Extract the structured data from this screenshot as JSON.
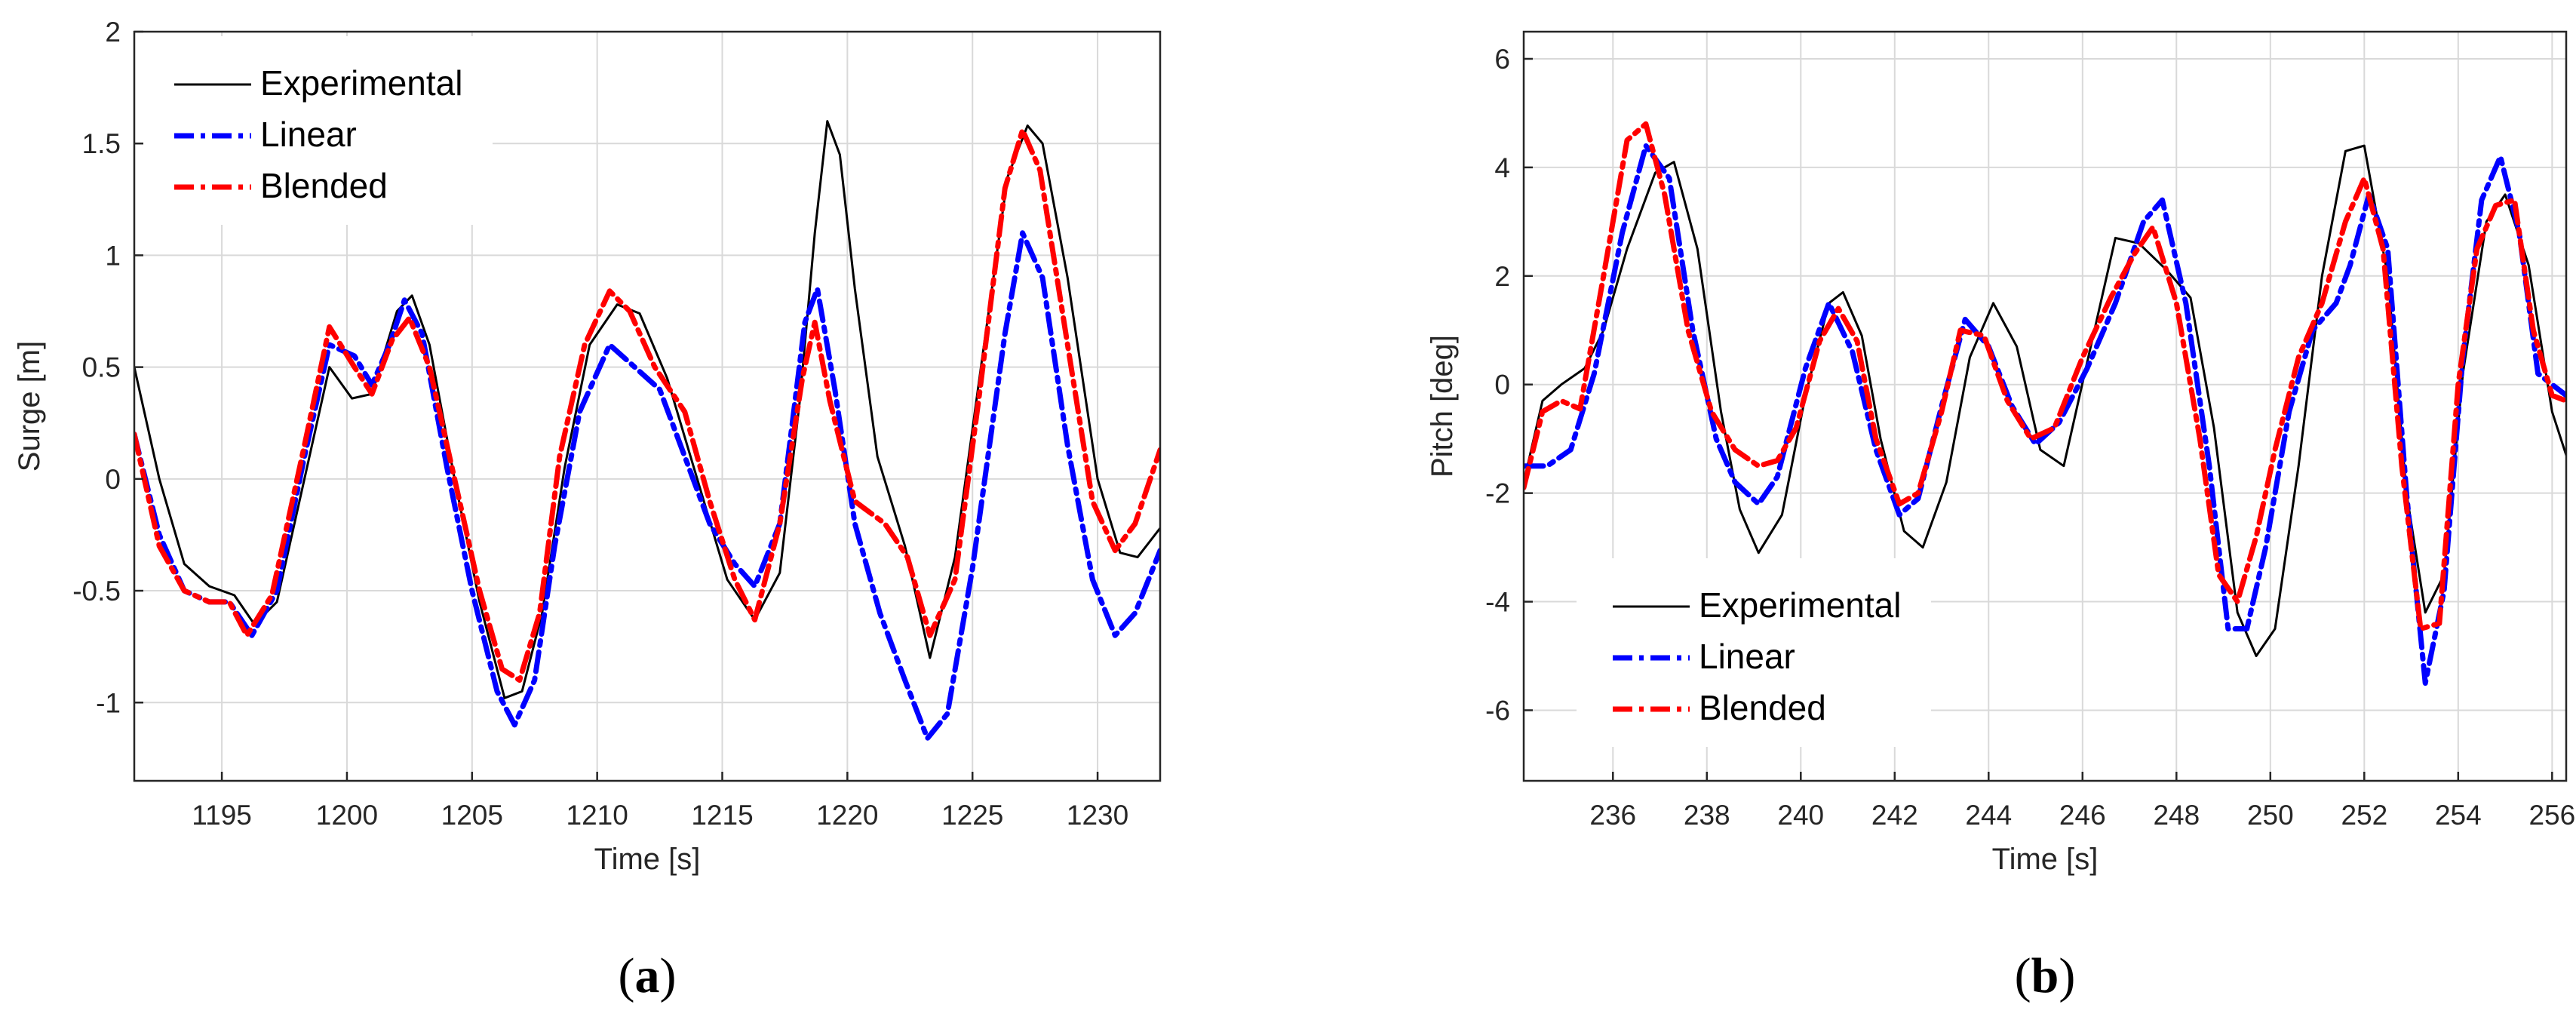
{
  "colors": {
    "experimental": "#000000",
    "linear": "#0000ff",
    "blended": "#ff0000",
    "grid": "#d9d9d9",
    "axis": "#262626"
  },
  "chart_data": [
    {
      "type": "line",
      "panel_label": {
        "open": "(",
        "letter": "a",
        "close": ")"
      },
      "title": "",
      "xlabel": "Time [s]",
      "ylabel": "Surge [m]",
      "xlim": [
        1191.5,
        1232.5
      ],
      "ylim": [
        -1.35,
        2.0
      ],
      "xticks": [
        1195,
        1200,
        1205,
        1210,
        1215,
        1220,
        1225,
        1230
      ],
      "yticks": [
        -1,
        -0.5,
        0,
        0.5,
        1,
        1.5,
        2
      ],
      "xtick_labels": [
        "1195",
        "1200",
        "1205",
        "1210",
        "1215",
        "1220",
        "1225",
        "1230"
      ],
      "ytick_labels": [
        "-1",
        "-0.5",
        "0",
        "0.5",
        "1",
        "1.5",
        "2"
      ],
      "grid": true,
      "legend_position": "top-left",
      "series": [
        {
          "name": "Experimental",
          "style": "solid",
          "x": [
            1191.5,
            1192.5,
            1193.5,
            1194.5,
            1195.5,
            1196.3,
            1197.2,
            1198.3,
            1199.3,
            1200.2,
            1201.0,
            1202.0,
            1202.6,
            1203.3,
            1204.3,
            1205.3,
            1206.3,
            1207.0,
            1207.8,
            1208.7,
            1209.7,
            1210.8,
            1211.7,
            1212.8,
            1214.0,
            1215.2,
            1216.3,
            1217.3,
            1218.1,
            1218.7,
            1219.2,
            1219.7,
            1220.3,
            1221.2,
            1222.3,
            1223.3,
            1224.3,
            1225.4,
            1226.4,
            1227.2,
            1227.8,
            1228.8,
            1230.0,
            1230.9,
            1231.6,
            1232.5
          ],
          "y": [
            0.5,
            0.0,
            -0.38,
            -0.48,
            -0.52,
            -0.65,
            -0.55,
            0.0,
            0.5,
            0.36,
            0.38,
            0.75,
            0.82,
            0.6,
            0.0,
            -0.55,
            -0.98,
            -0.95,
            -0.6,
            0.05,
            0.6,
            0.78,
            0.74,
            0.45,
            0.0,
            -0.45,
            -0.63,
            -0.42,
            0.35,
            1.1,
            1.6,
            1.45,
            0.85,
            0.1,
            -0.3,
            -0.8,
            -0.35,
            0.55,
            1.35,
            1.58,
            1.5,
            0.9,
            0.0,
            -0.33,
            -0.35,
            -0.22
          ]
        },
        {
          "name": "Linear",
          "style": "dashdot",
          "x": [
            1191.5,
            1192.5,
            1193.5,
            1194.5,
            1195.3,
            1196.2,
            1197.2,
            1198.3,
            1199.3,
            1200.3,
            1201.0,
            1201.7,
            1202.3,
            1203.0,
            1204.0,
            1205.0,
            1206.0,
            1206.7,
            1207.5,
            1208.3,
            1209.3,
            1210.5,
            1211.5,
            1212.5,
            1213.5,
            1214.5,
            1215.5,
            1216.3,
            1217.3,
            1218.3,
            1218.8,
            1219.5,
            1220.3,
            1221.3,
            1222.3,
            1223.2,
            1224.0,
            1225.0,
            1226.3,
            1227.0,
            1227.8,
            1228.8,
            1229.8,
            1230.7,
            1231.5,
            1232.5
          ],
          "y": [
            0.2,
            -0.25,
            -0.5,
            -0.55,
            -0.55,
            -0.7,
            -0.5,
            0.1,
            0.6,
            0.55,
            0.42,
            0.6,
            0.8,
            0.65,
            0.05,
            -0.5,
            -0.95,
            -1.1,
            -0.9,
            -0.3,
            0.3,
            0.6,
            0.5,
            0.4,
            0.1,
            -0.2,
            -0.38,
            -0.48,
            -0.2,
            0.7,
            0.85,
            0.4,
            -0.2,
            -0.6,
            -0.9,
            -1.16,
            -1.05,
            -0.4,
            0.65,
            1.1,
            0.9,
            0.15,
            -0.45,
            -0.7,
            -0.6,
            -0.32
          ]
        },
        {
          "name": "Blended",
          "style": "dashdot",
          "x": [
            1191.5,
            1192.5,
            1193.5,
            1194.5,
            1195.3,
            1196.0,
            1197.0,
            1198.3,
            1199.3,
            1200.3,
            1201.0,
            1201.8,
            1202.5,
            1203.3,
            1204.3,
            1205.3,
            1206.2,
            1206.9,
            1207.7,
            1208.5,
            1209.5,
            1210.5,
            1211.3,
            1212.3,
            1213.5,
            1214.5,
            1215.5,
            1216.3,
            1217.3,
            1218.2,
            1218.7,
            1219.3,
            1220.3,
            1221.5,
            1222.4,
            1223.3,
            1224.3,
            1225.3,
            1226.3,
            1227.0,
            1227.7,
            1228.8,
            1229.8,
            1230.7,
            1231.5,
            1232.5
          ],
          "y": [
            0.2,
            -0.3,
            -0.5,
            -0.55,
            -0.55,
            -0.7,
            -0.52,
            0.15,
            0.68,
            0.5,
            0.38,
            0.62,
            0.72,
            0.5,
            0.0,
            -0.5,
            -0.85,
            -0.9,
            -0.6,
            0.1,
            0.6,
            0.84,
            0.75,
            0.5,
            0.3,
            -0.1,
            -0.45,
            -0.63,
            -0.2,
            0.45,
            0.7,
            0.35,
            -0.1,
            -0.2,
            -0.35,
            -0.7,
            -0.45,
            0.4,
            1.3,
            1.56,
            1.38,
            0.6,
            -0.1,
            -0.32,
            -0.2,
            0.13
          ]
        }
      ]
    },
    {
      "type": "line",
      "panel_label": {
        "open": "(",
        "letter": "b",
        "close": ")"
      },
      "title": "",
      "xlabel": "Time [s]",
      "ylabel": "Pitch [deg]",
      "xlim": [
        234.1,
        256.3
      ],
      "ylim": [
        -7.3,
        6.5
      ],
      "xticks": [
        236,
        238,
        240,
        242,
        244,
        246,
        248,
        250,
        252,
        254,
        256
      ],
      "yticks": [
        -6,
        -4,
        -2,
        0,
        2,
        4,
        6
      ],
      "xtick_labels": [
        "236",
        "238",
        "240",
        "242",
        "244",
        "246",
        "248",
        "250",
        "252",
        "254",
        "256"
      ],
      "ytick_labels": [
        "-6",
        "-4",
        "-2",
        "0",
        "2",
        "4",
        "6"
      ],
      "grid": true,
      "legend_position": "bottom-left",
      "series": [
        {
          "name": "Experimental",
          "style": "solid",
          "x": [
            234.1,
            234.5,
            234.9,
            235.4,
            235.8,
            236.3,
            236.9,
            237.3,
            237.8,
            238.3,
            238.7,
            239.1,
            239.6,
            240.1,
            240.6,
            240.9,
            241.3,
            241.7,
            242.2,
            242.6,
            243.1,
            243.6,
            244.1,
            244.6,
            245.1,
            245.6,
            246.2,
            246.7,
            247.2,
            247.8,
            248.3,
            248.8,
            249.3,
            249.7,
            250.1,
            250.6,
            251.1,
            251.6,
            252.0,
            252.5,
            252.9,
            253.3,
            253.7,
            254.1,
            254.6,
            255.0,
            255.5,
            256.0,
            256.3
          ],
          "y": [
            -1.8,
            -0.3,
            0.0,
            0.3,
            1.0,
            2.5,
            3.9,
            4.1,
            2.5,
            -0.5,
            -2.3,
            -3.1,
            -2.4,
            -0.2,
            1.5,
            1.7,
            0.9,
            -1.0,
            -2.7,
            -3.0,
            -1.8,
            0.5,
            1.5,
            0.7,
            -1.2,
            -1.5,
            0.8,
            2.7,
            2.6,
            2.1,
            1.6,
            -0.8,
            -4.2,
            -5.0,
            -4.5,
            -1.5,
            2.0,
            4.3,
            4.4,
            2.0,
            -2.0,
            -4.2,
            -3.5,
            0.2,
            3.0,
            3.5,
            2.2,
            -0.5,
            -1.3
          ]
        },
        {
          "name": "Linear",
          "style": "dashdot",
          "x": [
            234.1,
            234.6,
            235.1,
            235.6,
            236.2,
            236.7,
            237.2,
            237.7,
            238.2,
            238.6,
            239.1,
            239.5,
            240.1,
            240.6,
            241.1,
            241.6,
            242.1,
            242.5,
            243.0,
            243.5,
            244.0,
            244.5,
            245.0,
            245.5,
            246.1,
            246.7,
            247.3,
            247.7,
            248.2,
            248.7,
            249.1,
            249.5,
            249.9,
            250.4,
            250.9,
            251.4,
            251.7,
            252.1,
            252.5,
            252.9,
            253.3,
            253.7,
            254.1,
            254.5,
            254.9,
            255.3,
            255.7,
            256.3
          ],
          "y": [
            -1.5,
            -1.5,
            -1.2,
            0.2,
            2.8,
            4.4,
            3.8,
            1.0,
            -1.0,
            -1.8,
            -2.2,
            -1.7,
            0.3,
            1.5,
            0.6,
            -1.2,
            -2.4,
            -2.1,
            -0.4,
            1.2,
            0.7,
            -0.4,
            -1.1,
            -0.7,
            0.3,
            1.5,
            3.0,
            3.4,
            1.5,
            -1.5,
            -4.5,
            -4.5,
            -3.0,
            -0.5,
            1.0,
            1.5,
            2.2,
            3.5,
            2.5,
            -2.0,
            -5.5,
            -3.8,
            0.5,
            3.4,
            4.2,
            2.8,
            0.2,
            -0.2
          ]
        },
        {
          "name": "Blended",
          "style": "dashdot",
          "x": [
            234.1,
            234.5,
            234.9,
            235.3,
            235.8,
            236.3,
            236.7,
            237.1,
            237.6,
            238.1,
            238.6,
            239.1,
            239.5,
            239.9,
            240.4,
            240.8,
            241.2,
            241.6,
            242.1,
            242.5,
            243.0,
            243.4,
            243.9,
            244.4,
            244.9,
            245.4,
            246.0,
            246.6,
            247.1,
            247.5,
            248.0,
            248.5,
            248.9,
            249.3,
            249.7,
            250.1,
            250.6,
            251.1,
            251.6,
            252.0,
            252.4,
            252.8,
            253.2,
            253.6,
            254.0,
            254.4,
            254.8,
            255.2,
            255.6,
            256.0,
            256.3
          ],
          "y": [
            -1.9,
            -0.5,
            -0.3,
            -0.45,
            2.0,
            4.5,
            4.8,
            3.5,
            1.0,
            -0.5,
            -1.2,
            -1.5,
            -1.4,
            -0.8,
            0.8,
            1.4,
            0.8,
            -1.0,
            -2.2,
            -2.0,
            -0.5,
            1.0,
            0.9,
            -0.3,
            -1.0,
            -0.8,
            0.5,
            1.6,
            2.4,
            2.9,
            1.5,
            -1.0,
            -3.5,
            -4.0,
            -2.8,
            -1.2,
            0.5,
            1.5,
            3.0,
            3.8,
            2.5,
            -1.5,
            -4.5,
            -4.4,
            0.0,
            2.5,
            3.3,
            3.4,
            1.0,
            -0.2,
            -0.3
          ]
        }
      ]
    }
  ]
}
